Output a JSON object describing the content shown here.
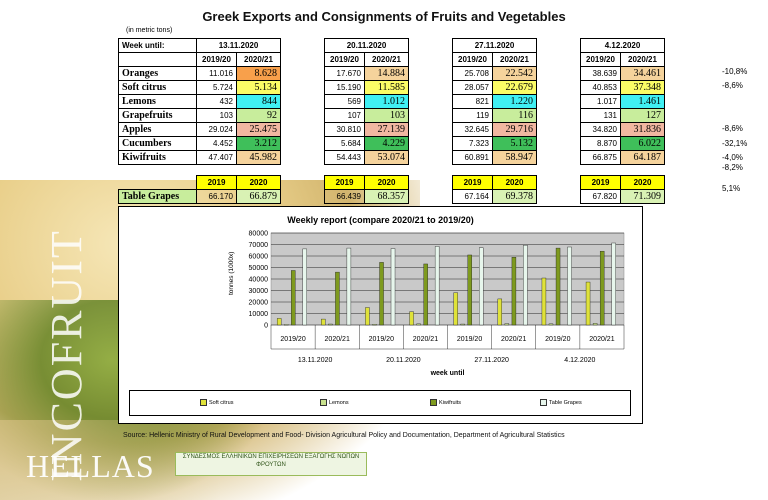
{
  "title": "Greek Exports and Consignments of Fruits and Vegetables",
  "unit": "(in metric tons)",
  "week_label": "Week until:",
  "weeks": [
    "13.11.2020",
    "20.11.2020",
    "27.11.2020",
    "4.12.2020"
  ],
  "season_headers": [
    "2019/20",
    "2020/21"
  ],
  "year_headers": [
    "2019",
    "2020"
  ],
  "rows": [
    {
      "label": "Oranges",
      "vals": [
        "11.016",
        "8.628",
        "17.670",
        "14.884",
        "25.708",
        "22.542",
        "38.639",
        "34.461"
      ],
      "pct": "-10,8%"
    },
    {
      "label": "Soft citrus",
      "vals": [
        "5.724",
        "5.134",
        "15.190",
        "11.585",
        "28.057",
        "22.679",
        "40.853",
        "37.348"
      ],
      "pct": "-8,6%"
    },
    {
      "label": "Lemons",
      "vals": [
        "432",
        "844",
        "569",
        "1.012",
        "821",
        "1.220",
        "1.017",
        "1.461"
      ],
      "pct": ""
    },
    {
      "label": "Grapefruits",
      "vals": [
        "103",
        "92",
        "107",
        "103",
        "119",
        "116",
        "131",
        "127"
      ],
      "pct": ""
    },
    {
      "label": "Apples",
      "vals": [
        "29.024",
        "25.475",
        "30.810",
        "27.139",
        "32.645",
        "29.716",
        "34.820",
        "31.836"
      ],
      "pct": "-8,6%"
    },
    {
      "label": "Cucumbers",
      "vals": [
        "4.452",
        "3.212",
        "5.684",
        "4.229",
        "7.323",
        "5.132",
        "8.870",
        "6.022"
      ],
      "pct": "-32,1%"
    },
    {
      "label": "Kiwifruits",
      "vals": [
        "47.407",
        "45.982",
        "54.443",
        "53.074",
        "60.891",
        "58.947",
        "66.875",
        "64.187"
      ],
      "pct": "-4,0%"
    }
  ],
  "extra_pct": "-8,2%",
  "grapes": {
    "label": "Table Grapes",
    "vals": [
      "66.170",
      "66.879",
      "66.439",
      "68.357",
      "67.164",
      "69.378",
      "67.820",
      "71.309"
    ],
    "pct": "5,1%"
  },
  "watermark": "INCOFRUIT",
  "logo_text": "HELLAS",
  "stamp_text": "ΣΥΝΔΕΣΜΟΣ ΕΛΛΗΝΙΚΩΝ ΕΠΙΧΕΙΡΗΣΕΩΝ ΕΞΑΓΩΓΗΣ ΝΩΠΩΝ ΦΡΟΥΤΩΝ",
  "source": "Source: Hellenic Ministry of Rural Development and Food- Division Agricultural Policy and Documentation, Department of Agricultural Statistics",
  "colors": {
    "softcitrus": "#dfe23a",
    "lemons": "#c9e28e",
    "kiwi": "#7e9a1e",
    "grapes": "#e7f6ec",
    "plot_bg": "#c9c9c9"
  },
  "chart_data": {
    "type": "bar",
    "title": "Weekly report (compare 2020/21 to 2019/20)",
    "xlabel": "week until",
    "ylabel": "tonnes (1000x)",
    "ylim": [
      0,
      80000
    ],
    "yticks": [
      "0",
      "10000",
      "20000",
      "30000",
      "40000",
      "50000",
      "60000",
      "70000",
      "80000"
    ],
    "categories": [
      "2019/20",
      "2020/21",
      "2019/20",
      "2020/21",
      "2019/20",
      "2020/21",
      "2019/20",
      "2020/21"
    ],
    "groups": [
      "13.11.2020",
      "20.11.2020",
      "27.11.2020",
      "4.12.2020"
    ],
    "series": [
      {
        "name": "Soft citrus",
        "values": [
          5724,
          5134,
          15190,
          11585,
          28057,
          22679,
          40853,
          37348
        ]
      },
      {
        "name": "Lemons",
        "values": [
          432,
          844,
          569,
          1012,
          821,
          1220,
          1017,
          1461
        ]
      },
      {
        "name": "Kiwifruits",
        "values": [
          47407,
          45982,
          54443,
          53074,
          60891,
          58947,
          66875,
          64187
        ]
      },
      {
        "name": "Table Grapes",
        "values": [
          66170,
          66879,
          66439,
          68357,
          67164,
          69378,
          67820,
          71309
        ]
      }
    ],
    "legend": "bottom"
  }
}
